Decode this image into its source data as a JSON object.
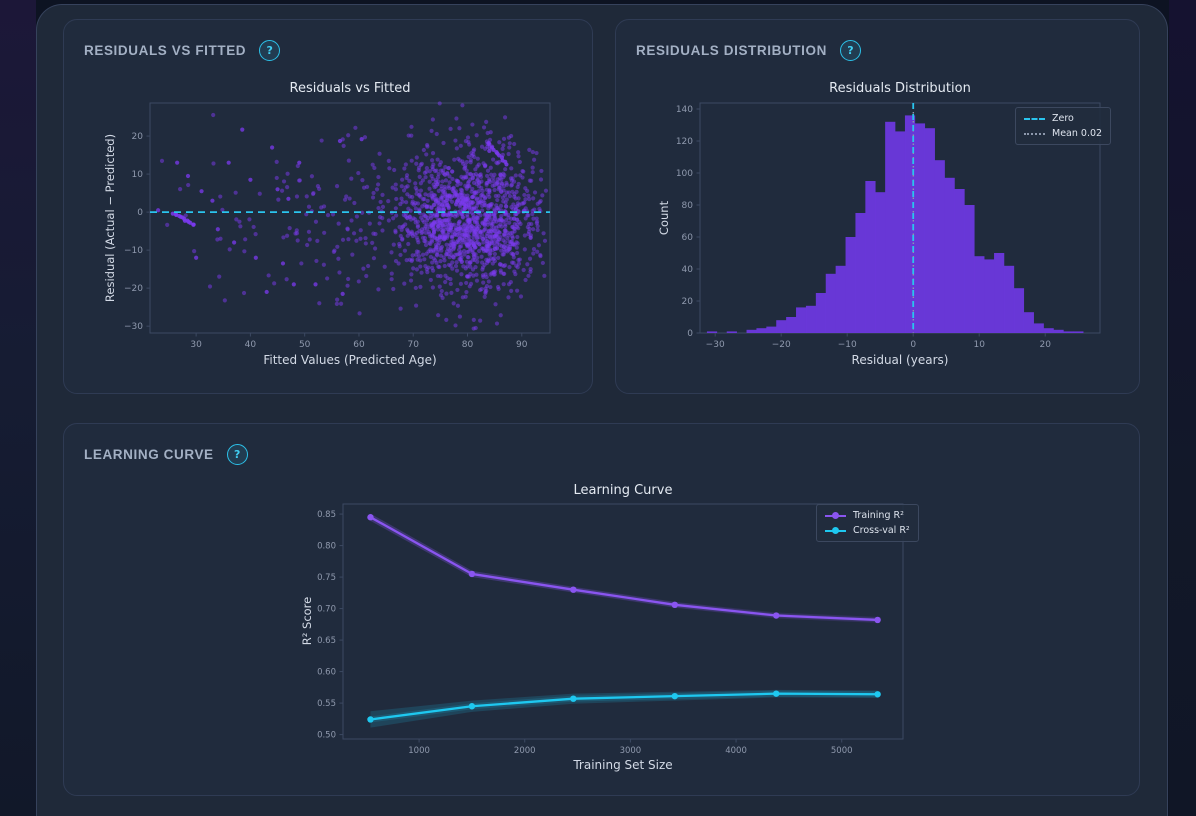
{
  "panels": {
    "residuals_fitted": {
      "header": "RESIDUALS VS FITTED",
      "help_label": "?"
    },
    "residuals_distribution": {
      "header": "RESIDUALS DISTRIBUTION",
      "help_label": "?"
    },
    "learning_curve": {
      "header": "LEARNING CURVE",
      "help_label": "?"
    }
  },
  "chart_data": [
    {
      "id": "residuals_vs_fitted",
      "type": "scatter",
      "title": "Residuals vs Fitted",
      "xlabel": "Fitted Values (Predicted Age)",
      "ylabel": "Residual (Actual − Predicted)",
      "xlim": [
        21.5,
        95.2
      ],
      "ylim": [
        -31.8,
        28.7
      ],
      "xticks": [
        30,
        40,
        50,
        60,
        70,
        80,
        90
      ],
      "xtick_labels": [
        "30",
        "40",
        "50",
        "60",
        "70",
        "80",
        "90"
      ],
      "yticks": [
        20,
        10,
        0,
        -10,
        -20,
        -30
      ],
      "ytick_labels": [
        "20",
        "10",
        "0",
        "−10",
        "−20",
        "−30"
      ],
      "grid": false,
      "point_color": "#7b3af0",
      "point_opacity": 0.5,
      "zero_line": {
        "y": 0,
        "color": "#2ac4ee",
        "style": "dashed"
      },
      "points_spec": {
        "seed": 7,
        "clusters": [
          {
            "n": 1350,
            "cx": 80.5,
            "cy": -1.5,
            "sx": 6.5,
            "sy": 9.2,
            "xmin": 58,
            "xmax": 94.5
          },
          {
            "n": 170,
            "cx": 61,
            "cy": -1,
            "sx": 13,
            "sy": 10,
            "xmin": 23,
            "xmax": 94.5
          },
          {
            "n": 26,
            "cx": 38,
            "cy": -2,
            "sx": 8,
            "sy": 11,
            "xmin": 22.5,
            "xmax": 60
          }
        ],
        "streaks": [
          {
            "x0": 25.8,
            "y0": -0.3,
            "x1": 29.6,
            "y1": -3.4,
            "n": 13
          },
          {
            "x0": 83.8,
            "y0": 18.3,
            "x1": 87.2,
            "y1": 12.5,
            "n": 11
          }
        ],
        "extra_points": [
          [
            23.0,
            0.5
          ],
          [
            26.5,
            13.0
          ],
          [
            28.5,
            9.5
          ],
          [
            30.0,
            -12.0
          ],
          [
            31.0,
            5.5
          ],
          [
            33.0,
            3.0
          ],
          [
            34.0,
            -4.5
          ],
          [
            36.0,
            13.0
          ],
          [
            37.0,
            -8.0
          ],
          [
            38.5,
            21.7
          ],
          [
            40.0,
            8.5
          ],
          [
            41.0,
            -12.0
          ],
          [
            43.0,
            -21.0
          ],
          [
            44.0,
            17.0
          ],
          [
            45.0,
            6.0
          ],
          [
            46.0,
            -13.5
          ],
          [
            47.0,
            3.5
          ],
          [
            48.0,
            -19.0
          ],
          [
            49.0,
            13.0
          ],
          [
            52.0,
            -19.0
          ],
          [
            56.5,
            18.7
          ],
          [
            57.0,
            -21.5
          ],
          [
            60.5,
            19.2
          ]
        ]
      }
    },
    {
      "id": "residuals_distribution",
      "type": "histogram",
      "title": "Residuals Distribution",
      "xlabel": "Residual (years)",
      "ylabel": "Count",
      "xlim": [
        -32.3,
        28.3
      ],
      "ylim": [
        0,
        143.75
      ],
      "xticks": [
        -30,
        -20,
        -10,
        0,
        10,
        20
      ],
      "xtick_labels": [
        "−30",
        "−20",
        "−10",
        "0",
        "10",
        "20"
      ],
      "yticks": [
        0,
        20,
        40,
        60,
        80,
        100,
        120,
        140
      ],
      "ytick_labels": [
        "0",
        "20",
        "40",
        "60",
        "80",
        "100",
        "120",
        "140"
      ],
      "grid": false,
      "bar_color": "#6d38de",
      "bin_start": -31.25,
      "bin_width": 1.5,
      "counts": [
        1,
        0,
        1,
        0,
        2,
        3,
        4,
        8,
        10,
        16,
        17,
        25,
        37,
        42,
        60,
        75,
        95,
        88,
        132,
        126,
        136,
        131,
        128,
        108,
        97,
        90,
        80,
        48,
        46,
        50,
        42,
        28,
        13,
        6,
        3,
        2,
        1,
        1
      ],
      "mean": 0.02,
      "zero_line": {
        "x": 0,
        "color": "#2ac4ee",
        "style": "dashed"
      },
      "mean_line": {
        "x": 0.02,
        "color": "#8d98ac",
        "style": "dotted"
      },
      "legend": [
        {
          "label": "Zero",
          "color": "#2ac4ee",
          "style": "dashed"
        },
        {
          "label": "Mean 0.02",
          "color": "#8d98ac",
          "style": "dotted"
        }
      ],
      "legend_position": "upper right"
    },
    {
      "id": "learning_curve",
      "type": "line",
      "title": "Learning Curve",
      "xlabel": "Training Set Size",
      "ylabel": "R² Score",
      "x": [
        540,
        1500,
        2460,
        3420,
        4380,
        5340
      ],
      "series": [
        {
          "name": "Training R²",
          "color": "#8a55f0",
          "values": [
            0.845,
            0.755,
            0.73,
            0.706,
            0.689,
            0.682
          ],
          "band": [
            0.006,
            0.005,
            0.004,
            0.004,
            0.003,
            0.003
          ]
        },
        {
          "name": "Cross-val R²",
          "color": "#1ec8f0",
          "values": [
            0.524,
            0.545,
            0.557,
            0.561,
            0.565,
            0.564
          ],
          "band": [
            0.013,
            0.009,
            0.008,
            0.007,
            0.006,
            0.006
          ]
        }
      ],
      "xlim": [
        280,
        5580
      ],
      "ylim": [
        0.493,
        0.866
      ],
      "xticks": [
        1000,
        2000,
        3000,
        4000,
        5000
      ],
      "xtick_labels": [
        "1000",
        "2000",
        "3000",
        "4000",
        "5000"
      ],
      "yticks": [
        0.5,
        0.55,
        0.6,
        0.65,
        0.7,
        0.75,
        0.8,
        0.85
      ],
      "ytick_labels": [
        "0.50",
        "0.55",
        "0.60",
        "0.65",
        "0.70",
        "0.75",
        "0.80",
        "0.85"
      ],
      "grid": false,
      "legend_position": "upper right"
    }
  ]
}
